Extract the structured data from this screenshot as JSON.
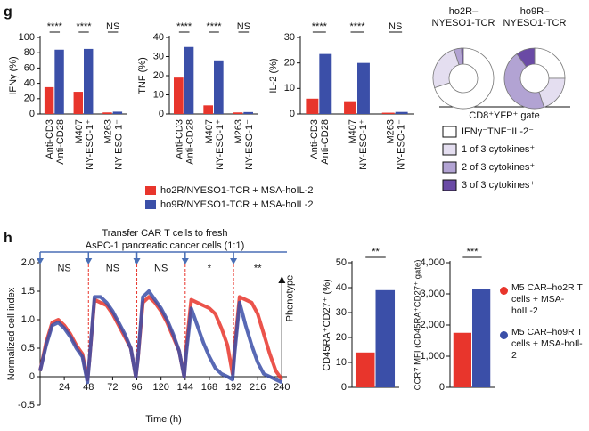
{
  "panel_labels": [
    "g",
    "h"
  ],
  "chart_data": [
    {
      "type": "bar",
      "y_label": "IFNγ (%)",
      "categories": [
        [
          "Anti-CD3",
          "Anti-CD28"
        ],
        [
          "M407",
          "NY-ESO-1⁺"
        ],
        [
          "M263",
          "NY-ESO-1⁻"
        ]
      ],
      "series": [
        {
          "name": "ho2R/NYESO1-TCR + MSA-hoIL-2",
          "color": "#e8352c",
          "values": [
            35,
            29,
            2
          ]
        },
        {
          "name": "ho9R/NYESO1-TCR + MSA-hoIL-2",
          "color": "#3b4fa8",
          "values": [
            84,
            85,
            3
          ]
        }
      ],
      "ylim": [
        0,
        100
      ],
      "yticks": [
        0,
        20,
        40,
        60,
        80,
        100
      ],
      "significance": [
        "****",
        "****",
        "NS"
      ]
    },
    {
      "type": "bar",
      "y_label": "TNF (%)",
      "categories": [
        [
          "Anti-CD3",
          "Anti-CD28"
        ],
        [
          "M407",
          "NY-ESO-1⁺"
        ],
        [
          "M263",
          "NY-ESO-1⁻"
        ]
      ],
      "series": [
        {
          "color": "#e8352c",
          "values": [
            19,
            4.5,
            0.8
          ]
        },
        {
          "color": "#3b4fa8",
          "values": [
            35,
            28,
            1
          ]
        }
      ],
      "ylim": [
        0,
        40
      ],
      "yticks": [
        0,
        10,
        20,
        30,
        40
      ],
      "significance": [
        "****",
        "****",
        "NS"
      ]
    },
    {
      "type": "bar",
      "y_label": "IL-2 (%)",
      "categories": [
        [
          "Anti-CD3",
          "Anti-CD28"
        ],
        [
          "M407",
          "NY-ESO-1⁺"
        ],
        [
          "M263",
          "NY-ESO-1⁻"
        ]
      ],
      "series": [
        {
          "color": "#e8352c",
          "values": [
            6,
            5,
            0.5
          ]
        },
        {
          "color": "#3b4fa8",
          "values": [
            23.5,
            20,
            0.8
          ]
        }
      ],
      "ylim": [
        0,
        30
      ],
      "yticks": [
        0,
        10,
        20,
        30
      ],
      "significance": [
        "****",
        "****",
        "NS"
      ]
    },
    {
      "type": "pie",
      "title": [
        "ho2R–",
        "NYESO1-TCR"
      ],
      "legend_title": "CD8⁺YFP⁺ gate",
      "categories": [
        "IFNγ⁻TNF⁻IL-2⁻",
        "1 of 3 cytokines⁺",
        "2 of 3 cytokines⁺",
        "3 of 3 cytokines⁺"
      ],
      "colors": [
        "#ffffff",
        "#e4def0",
        "#b2a3d3",
        "#6a4aa5"
      ],
      "values": [
        70,
        25,
        4,
        1
      ]
    },
    {
      "type": "pie",
      "title": [
        "ho9R–",
        "NYESO1-TCR"
      ],
      "colors": [
        "#ffffff",
        "#e4def0",
        "#b2a3d3",
        "#6a4aa5"
      ],
      "values": [
        25,
        20,
        45,
        10
      ]
    },
    {
      "type": "line",
      "title": "Transfer CAR T cells to fresh",
      "subtitle": "AsPC-1 pancreatic cancer cells (1:1)",
      "x_label": "Time (h)",
      "y_label": "Normalized cell index",
      "phenotype_label": "Phenotype",
      "transfer_times": [
        48,
        96,
        144,
        192
      ],
      "annotations": [
        "NS",
        "NS",
        "NS",
        "*",
        "**"
      ],
      "x": [
        0,
        6,
        12,
        18,
        24,
        30,
        36,
        42,
        47,
        49,
        54,
        60,
        66,
        72,
        78,
        84,
        90,
        95,
        97,
        102,
        108,
        114,
        120,
        126,
        132,
        138,
        143,
        145,
        150,
        156,
        162,
        168,
        174,
        180,
        186,
        191,
        193,
        198,
        204,
        210,
        216,
        222,
        228,
        234,
        240
      ],
      "series": [
        {
          "color": "#e8352c",
          "values": [
            0.1,
            0.6,
            0.95,
            1.0,
            0.9,
            0.75,
            0.55,
            0.4,
            -0.05,
            0.3,
            1.35,
            1.3,
            1.25,
            1.1,
            0.9,
            0.7,
            0.5,
            0.0,
            0.3,
            1.3,
            1.4,
            1.3,
            1.15,
            0.95,
            0.7,
            0.45,
            0.0,
            0.5,
            1.35,
            1.3,
            1.25,
            1.2,
            1.1,
            0.85,
            0.55,
            0.05,
            0.5,
            1.4,
            1.35,
            1.3,
            1.1,
            0.75,
            0.4,
            0.1,
            -0.05
          ]
        },
        {
          "color": "#3b4fa8",
          "values": [
            0.1,
            0.55,
            0.9,
            0.95,
            0.85,
            0.7,
            0.5,
            0.35,
            -0.1,
            0.3,
            1.4,
            1.4,
            1.3,
            1.15,
            0.95,
            0.75,
            0.5,
            0.0,
            0.3,
            1.4,
            1.5,
            1.35,
            1.2,
            1.0,
            0.75,
            0.45,
            0.0,
            0.4,
            1.2,
            0.9,
            0.6,
            0.35,
            0.15,
            0.05,
            0.0,
            -0.05,
            0.4,
            1.3,
            0.9,
            0.55,
            0.25,
            0.05,
            0.0,
            -0.05,
            -0.1
          ]
        }
      ],
      "xlim": [
        0,
        245
      ],
      "xticks": [
        24,
        48,
        72,
        96,
        120,
        144,
        168,
        192,
        216,
        240
      ],
      "ylim": [
        -0.5,
        2.0
      ],
      "yticks": [
        -0.5,
        0,
        0.5,
        {
          "value": 1,
          "label": "1.0"
        },
        1.5,
        {
          "value": 2,
          "label": "2.0"
        }
      ]
    },
    {
      "type": "bar",
      "y_label": "CD45RA⁺CD27⁺ (%)",
      "series": [
        {
          "name": "M5 CAR–ho2R T cells + MSA-hoIL-2",
          "color": "#e8352c",
          "values": [
            14
          ]
        },
        {
          "name": "M5 CAR–ho9R T cells + MSA-hoIl-2",
          "color": "#3b4fa8",
          "values": [
            39
          ]
        }
      ],
      "ylim": [
        0,
        50
      ],
      "yticks": [
        0,
        10,
        20,
        30,
        40,
        50
      ],
      "significance": [
        "**"
      ]
    },
    {
      "type": "bar",
      "y_label": "CCR7 MFI (CD45RA⁺CD27⁺ gate)",
      "series": [
        {
          "color": "#e8352c",
          "values": [
            1750
          ]
        },
        {
          "color": "#3b4fa8",
          "values": [
            3150
          ]
        }
      ],
      "ylim": [
        0,
        4000
      ],
      "yticks": [
        0,
        {
          "value": 1000,
          "label": "1,000"
        },
        {
          "value": 2000,
          "label": "2,000"
        },
        {
          "value": 3000,
          "label": "3,000"
        },
        {
          "value": 4000,
          "label": "4,000"
        }
      ],
      "significance": [
        "***"
      ]
    }
  ]
}
